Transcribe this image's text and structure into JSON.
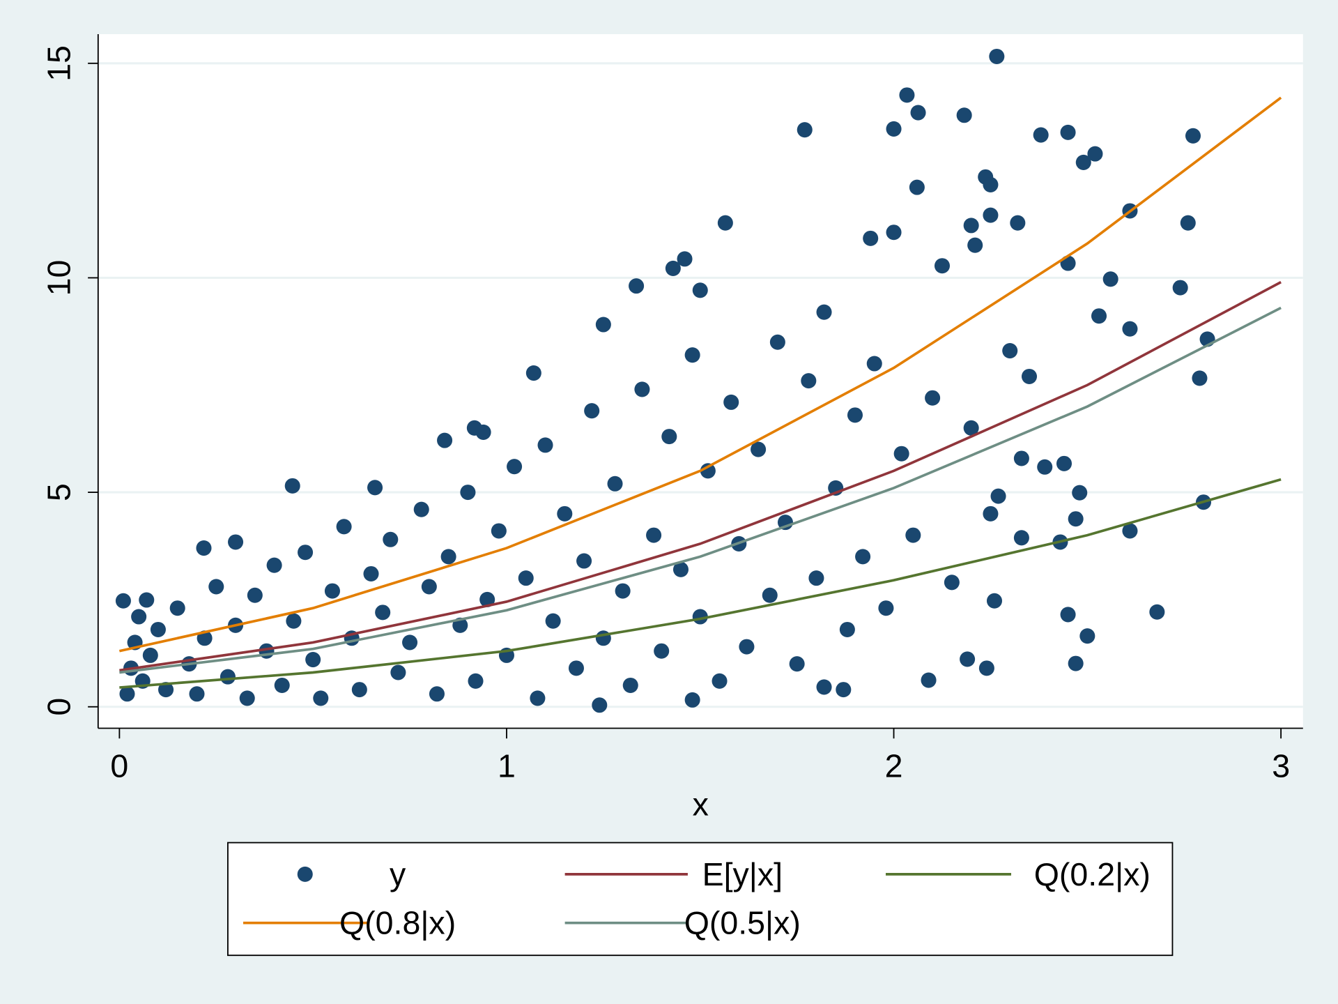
{
  "chart_data": {
    "type": "scatter",
    "x_label": "x",
    "xlim": [
      -0.055,
      3.057
    ],
    "ylim": [
      -0.5,
      15.68
    ],
    "xticks": [
      0,
      1,
      2,
      3
    ],
    "yticks": [
      0,
      5,
      10,
      15
    ],
    "grid": true,
    "series": [
      {
        "name": "y",
        "type": "scatter",
        "color": "#1a476f",
        "x": [
          2.266,
          2.034,
          2.063,
          2.182,
          1.77,
          2.0,
          2.38,
          2.45,
          2.773,
          2.52,
          2.49,
          2.237,
          2.06,
          2.25,
          2.61,
          2.25,
          2.76,
          2.32,
          1.565,
          2.2,
          2.0,
          1.94,
          2.21,
          2.45,
          1.46,
          1.43,
          2.125,
          1.335,
          1.5,
          2.74,
          2.56,
          1.25,
          2.81,
          2.79,
          1.07,
          2.61,
          2.53,
          0.84,
          0.917,
          0.94,
          0.447,
          0.66,
          2.8,
          2.61,
          2.68,
          2.45,
          2.5,
          2.47,
          2.09,
          2.24,
          2.19,
          2.26,
          2.43,
          2.33,
          2.47,
          2.48,
          2.44,
          2.39,
          2.33,
          2.27,
          0.218,
          0.3,
          0.01,
          0.07,
          1.87,
          1.82,
          1.48,
          1.24,
          0.02,
          0.03,
          0.04,
          0.05,
          0.06,
          0.08,
          0.1,
          0.12,
          0.15,
          0.18,
          0.2,
          0.22,
          0.25,
          0.28,
          0.3,
          0.33,
          0.35,
          0.38,
          0.4,
          0.42,
          0.45,
          0.48,
          0.5,
          0.52,
          0.55,
          0.58,
          0.6,
          0.62,
          0.65,
          0.68,
          0.7,
          0.72,
          0.75,
          0.78,
          0.8,
          0.82,
          0.85,
          0.88,
          0.9,
          0.92,
          0.95,
          0.98,
          1.0,
          1.02,
          1.05,
          1.08,
          1.1,
          1.12,
          1.15,
          1.18,
          1.2,
          1.22,
          1.25,
          1.28,
          1.3,
          1.32,
          1.35,
          1.38,
          1.4,
          1.42,
          1.45,
          1.48,
          1.5,
          1.52,
          1.55,
          1.58,
          1.6,
          1.62,
          1.65,
          1.68,
          1.7,
          1.72,
          1.75,
          1.78,
          1.8,
          1.82,
          1.85,
          1.88,
          1.9,
          1.92,
          1.95,
          1.98,
          2.02,
          2.05,
          2.1,
          2.15,
          2.2,
          2.25,
          2.3,
          2.35
        ],
        "values": [
          15.16,
          14.26,
          13.85,
          13.79,
          13.45,
          13.47,
          13.33,
          13.39,
          13.31,
          12.89,
          12.69,
          12.35,
          12.11,
          12.17,
          11.56,
          11.46,
          11.28,
          11.28,
          11.28,
          11.22,
          11.06,
          10.92,
          10.76,
          10.34,
          10.44,
          10.22,
          10.28,
          9.81,
          9.71,
          9.77,
          9.97,
          8.91,
          8.57,
          7.66,
          7.78,
          8.81,
          9.11,
          6.21,
          6.5,
          6.4,
          5.15,
          5.11,
          4.77,
          4.1,
          2.21,
          2.15,
          1.65,
          1.01,
          0.62,
          0.9,
          1.11,
          2.47,
          3.84,
          3.94,
          4.38,
          4.99,
          5.67,
          5.59,
          5.79,
          4.91,
          3.7,
          3.84,
          2.47,
          2.49,
          0.4,
          0.46,
          0.16,
          0.04,
          0.3,
          0.9,
          1.5,
          2.1,
          0.6,
          1.2,
          1.8,
          0.4,
          2.3,
          1.0,
          0.3,
          1.6,
          2.8,
          0.7,
          1.9,
          0.2,
          2.6,
          1.3,
          3.3,
          0.5,
          2.0,
          3.6,
          1.1,
          0.2,
          2.7,
          4.2,
          1.6,
          0.4,
          3.1,
          2.2,
          3.9,
          0.8,
          1.5,
          4.6,
          2.8,
          0.3,
          3.5,
          1.9,
          5.0,
          0.6,
          2.5,
          4.1,
          1.2,
          5.6,
          3.0,
          0.2,
          6.1,
          2.0,
          4.5,
          0.9,
          3.4,
          6.9,
          1.6,
          5.2,
          2.7,
          0.5,
          7.4,
          4.0,
          1.3,
          6.3,
          3.2,
          8.2,
          2.1,
          5.5,
          0.6,
          7.1,
          3.8,
          1.4,
          6.0,
          2.6,
          8.5,
          4.3,
          1.0,
          7.6,
          3.0,
          9.2,
          5.1,
          1.8,
          6.8,
          3.5,
          8.0,
          2.3,
          5.9,
          4.0,
          7.2,
          2.9,
          6.5,
          4.5,
          8.3,
          7.7
        ]
      },
      {
        "name": "E[y|x]",
        "type": "line",
        "color": "#90353b",
        "x": [
          0,
          0.5,
          1,
          1.5,
          2,
          2.5,
          3
        ],
        "values": [
          0.85,
          1.5,
          2.45,
          3.8,
          5.5,
          7.5,
          9.9
        ]
      },
      {
        "name": "Q(0.2|x)",
        "type": "line",
        "color": "#55752f",
        "x": [
          0,
          0.5,
          1,
          1.5,
          2,
          2.5,
          3
        ],
        "values": [
          0.45,
          0.8,
          1.3,
          2.05,
          2.95,
          4.0,
          5.3
        ]
      },
      {
        "name": "Q(0.8|x)",
        "type": "line",
        "color": "#e37e00",
        "x": [
          0,
          0.5,
          1,
          1.5,
          2,
          2.5,
          3
        ],
        "values": [
          1.3,
          2.3,
          3.7,
          5.5,
          7.9,
          10.8,
          14.2
        ]
      },
      {
        "name": "Q(0.5|x)",
        "type": "line",
        "color": "#6e8e84",
        "x": [
          0,
          0.5,
          1,
          1.5,
          2,
          2.5,
          3
        ],
        "values": [
          0.8,
          1.35,
          2.25,
          3.5,
          5.1,
          7.0,
          9.3
        ]
      }
    ]
  }
}
